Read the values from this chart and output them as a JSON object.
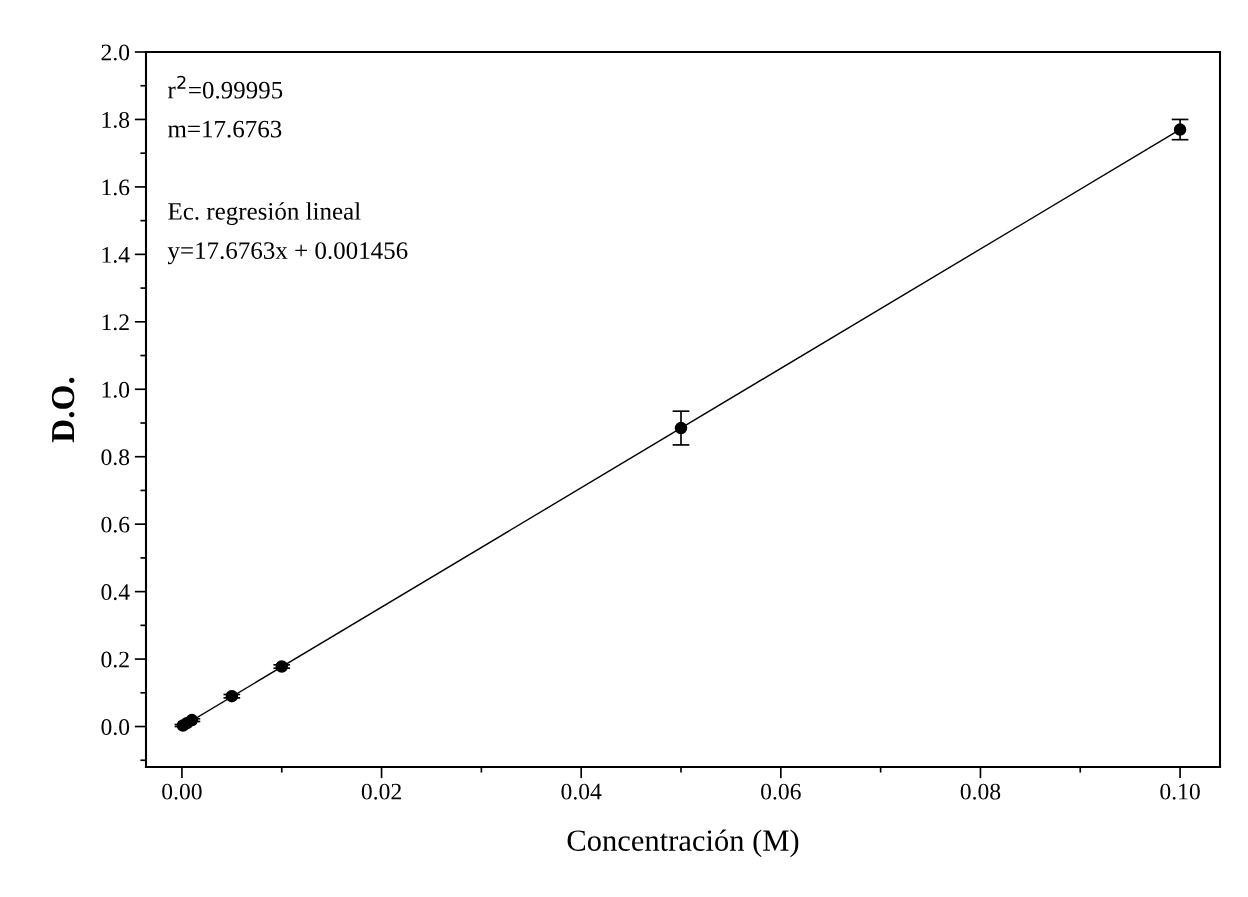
{
  "chart_data": {
    "type": "scatter",
    "xlabel": "Concentración (M)",
    "ylabel": "D.O.",
    "xlim": [
      -0.0036,
      0.104
    ],
    "ylim": [
      -0.12,
      2.0
    ],
    "xticks": [
      {
        "value": 0,
        "label": "0.00"
      },
      0.02,
      0.04,
      0.06,
      0.08,
      {
        "value": 0.1,
        "label": "0.10"
      }
    ],
    "yticks": [
      {
        "value": 0,
        "label": "0.0"
      },
      0.2,
      0.4,
      0.6,
      0.8,
      {
        "value": 1,
        "label": "1.0"
      },
      1.2,
      1.4,
      1.6,
      1.8,
      {
        "value": 2,
        "label": "2.0"
      }
    ],
    "grid": false,
    "annotations": [
      "r$^{2}$=0.99995",
      "m=17.6763",
      "Ec. regresión lineal",
      "y=17.6763x + 0.001456"
    ],
    "series": [
      {
        "marker": "circle",
        "color": "#000000",
        "x": [
          0.0001,
          0.0005,
          0.001,
          0.005,
          0.01,
          0.05,
          0.1
        ],
        "values": [
          0.003,
          0.01,
          0.019,
          0.09,
          0.178,
          0.885,
          1.77
        ],
        "errors": [
          0.003,
          0.004,
          0.004,
          0.005,
          0.005,
          0.05,
          0.03
        ]
      },
      {
        "type": "line",
        "color": "#000000",
        "x": [
          0,
          0.1
        ],
        "values": [
          0.0,
          1.77
        ]
      }
    ]
  }
}
